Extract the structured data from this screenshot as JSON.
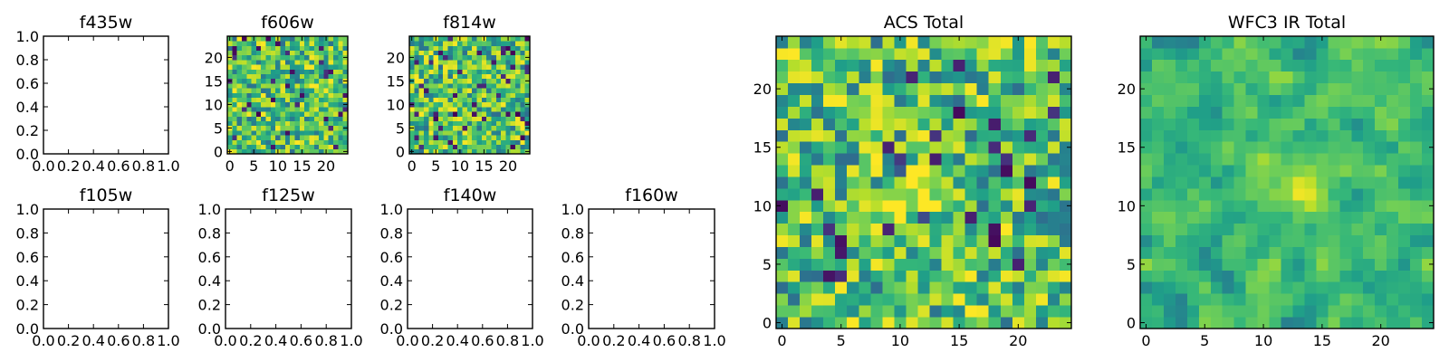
{
  "chart_data": [
    {
      "type": "heatmap",
      "title": "f435w",
      "empty": true,
      "xlim": [
        0,
        1
      ],
      "ylim": [
        0,
        1
      ],
      "xticks": [
        0.0,
        0.2,
        0.4,
        0.6,
        0.8,
        1.0
      ],
      "yticks": [
        0.0,
        0.2,
        0.4,
        0.6,
        0.8,
        1.0
      ],
      "xtick_labels": [
        "0.0",
        "0.2",
        "0.4",
        "0.6",
        "0.8",
        "1.0"
      ],
      "ytick_labels": [
        "0.0",
        "0.2",
        "0.4",
        "0.6",
        "0.8",
        "1.0"
      ]
    },
    {
      "type": "heatmap",
      "title": "f606w",
      "empty": false,
      "xlim": [
        -0.5,
        24.5
      ],
      "ylim": [
        -0.5,
        24.5
      ],
      "xticks": [
        0,
        5,
        10,
        15,
        20
      ],
      "yticks": [
        0,
        5,
        10,
        15,
        20
      ],
      "xtick_labels": [
        "0",
        "5",
        "10",
        "15",
        "20"
      ],
      "ytick_labels": [
        "0",
        "5",
        "10",
        "15",
        "20"
      ],
      "grid_size": 25,
      "colormap": "viridis",
      "value_range": [
        0,
        1
      ],
      "seed": 606,
      "smoothness": 0
    },
    {
      "type": "heatmap",
      "title": "f814w",
      "empty": false,
      "xlim": [
        -0.5,
        24.5
      ],
      "ylim": [
        -0.5,
        24.5
      ],
      "xticks": [
        0,
        5,
        10,
        15,
        20
      ],
      "yticks": [
        0,
        5,
        10,
        15,
        20
      ],
      "xtick_labels": [
        "0",
        "5",
        "10",
        "15",
        "20"
      ],
      "ytick_labels": [
        "0",
        "5",
        "10",
        "15",
        "20"
      ],
      "grid_size": 25,
      "colormap": "viridis",
      "value_range": [
        0,
        1
      ],
      "seed": 814,
      "smoothness": 0
    },
    {
      "type": "heatmap",
      "title": "ACS Total",
      "empty": false,
      "xlim": [
        -0.5,
        24.5
      ],
      "ylim": [
        -0.5,
        24.5
      ],
      "xticks": [
        0,
        5,
        10,
        15,
        20
      ],
      "yticks": [
        0,
        5,
        10,
        15,
        20
      ],
      "xtick_labels": [
        "0",
        "5",
        "10",
        "15",
        "20"
      ],
      "ytick_labels": [
        "0",
        "5",
        "10",
        "15",
        "20"
      ],
      "grid_size": 25,
      "colormap": "viridis",
      "value_range": [
        0,
        1
      ],
      "seed": 1234,
      "smoothness": 0,
      "bright_center": [
        11,
        11
      ]
    },
    {
      "type": "heatmap",
      "title": "WFC3 IR Total",
      "empty": false,
      "xlim": [
        -0.5,
        24.5
      ],
      "ylim": [
        -0.5,
        24.5
      ],
      "xticks": [
        0,
        5,
        10,
        15,
        20
      ],
      "yticks": [
        0,
        5,
        10,
        15,
        20
      ],
      "xtick_labels": [
        "0",
        "5",
        "10",
        "15",
        "20"
      ],
      "ytick_labels": [
        "0",
        "5",
        "10",
        "15",
        "20"
      ],
      "grid_size": 25,
      "colormap": "viridis",
      "value_range": [
        0,
        1
      ],
      "seed": 3160,
      "smoothness": 1,
      "bright_center": [
        13,
        11
      ]
    },
    {
      "type": "heatmap",
      "title": "f105w",
      "empty": true,
      "xlim": [
        0,
        1
      ],
      "ylim": [
        0,
        1
      ],
      "xticks": [
        0.0,
        0.2,
        0.4,
        0.6,
        0.8,
        1.0
      ],
      "yticks": [
        0.0,
        0.2,
        0.4,
        0.6,
        0.8,
        1.0
      ],
      "xtick_labels": [
        "0.0",
        "0.2",
        "0.4",
        "0.6",
        "0.8",
        "1.0"
      ],
      "ytick_labels": [
        "0.0",
        "0.2",
        "0.4",
        "0.6",
        "0.8",
        "1.0"
      ]
    },
    {
      "type": "heatmap",
      "title": "f125w",
      "empty": true,
      "xlim": [
        0,
        1
      ],
      "ylim": [
        0,
        1
      ],
      "xticks": [
        0.0,
        0.2,
        0.4,
        0.6,
        0.8,
        1.0
      ],
      "yticks": [
        0.0,
        0.2,
        0.4,
        0.6,
        0.8,
        1.0
      ],
      "xtick_labels": [
        "0.0",
        "0.2",
        "0.4",
        "0.6",
        "0.8",
        "1.0"
      ],
      "ytick_labels": [
        "0.0",
        "0.2",
        "0.4",
        "0.6",
        "0.8",
        "1.0"
      ]
    },
    {
      "type": "heatmap",
      "title": "f140w",
      "empty": true,
      "xlim": [
        0,
        1
      ],
      "ylim": [
        0,
        1
      ],
      "xticks": [
        0.0,
        0.2,
        0.4,
        0.6,
        0.8,
        1.0
      ],
      "yticks": [
        0.0,
        0.2,
        0.4,
        0.6,
        0.8,
        1.0
      ],
      "xtick_labels": [
        "0.0",
        "0.2",
        "0.4",
        "0.6",
        "0.8",
        "1.0"
      ],
      "ytick_labels": [
        "0.0",
        "0.2",
        "0.4",
        "0.6",
        "0.8",
        "1.0"
      ]
    },
    {
      "type": "heatmap",
      "title": "f160w",
      "empty": true,
      "xlim": [
        0,
        1
      ],
      "ylim": [
        0,
        1
      ],
      "xticks": [
        0.0,
        0.2,
        0.4,
        0.6,
        0.8,
        1.0
      ],
      "yticks": [
        0.0,
        0.2,
        0.4,
        0.6,
        0.8,
        1.0
      ],
      "xtick_labels": [
        "0.0",
        "0.2",
        "0.4",
        "0.6",
        "0.8",
        "1.0"
      ],
      "ytick_labels": [
        "0.0",
        "0.2",
        "0.4",
        "0.6",
        "0.8",
        "1.0"
      ]
    }
  ]
}
